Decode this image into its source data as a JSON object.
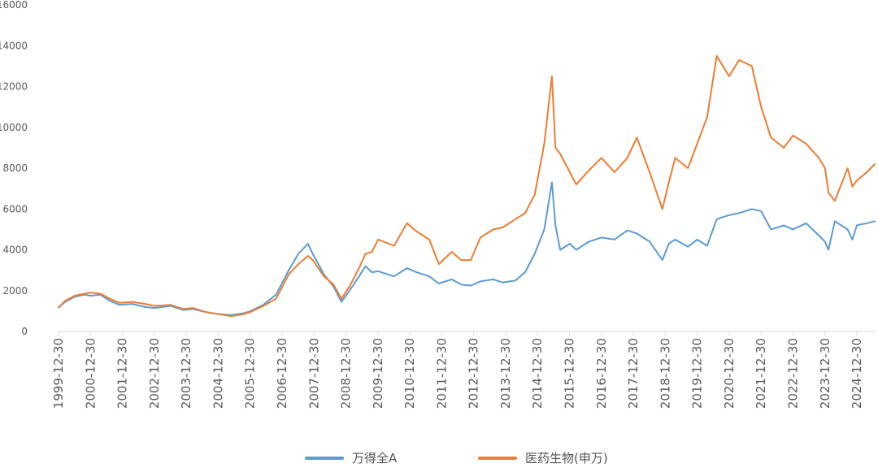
{
  "chart_data": {
    "type": "line",
    "title": "",
    "xlabel": "",
    "ylabel": "",
    "ylim": [
      0,
      16000
    ],
    "yticks": [
      "0",
      "2000",
      "4000",
      "6000",
      "8000",
      "10000",
      "12000",
      "14000",
      "16000"
    ],
    "xticks": [
      "1999-12-30",
      "2000-12-30",
      "2001-12-30",
      "2002-12-30",
      "2003-12-30",
      "2004-12-30",
      "2005-12-30",
      "2006-12-30",
      "2007-12-30",
      "2008-12-30",
      "2009-12-30",
      "2010-12-30",
      "2011-12-30",
      "2012-12-30",
      "2013-12-30",
      "2014-12-30",
      "2015-12-30",
      "2016-12-30",
      "2017-12-30",
      "2018-12-30",
      "2019-12-30",
      "2020-12-30",
      "2021-12-30",
      "2022-12-30",
      "2023-12-30",
      "2024-12-30"
    ],
    "grid": false,
    "legend_position": "bottom",
    "series": [
      {
        "name": "万得全A",
        "color": "#5B9BD5",
        "x": [
          1999.99,
          2000.2,
          2000.5,
          2000.8,
          2001.0,
          2001.3,
          2001.6,
          2001.9,
          2002.3,
          2002.7,
          2003.0,
          2003.5,
          2003.9,
          2004.2,
          2004.6,
          2005.0,
          2005.4,
          2005.8,
          2006.0,
          2006.4,
          2006.8,
          2007.0,
          2007.2,
          2007.5,
          2007.8,
          2007.95,
          2008.3,
          2008.6,
          2008.85,
          2009.1,
          2009.4,
          2009.6,
          2009.8,
          2010.0,
          2010.5,
          2010.9,
          2011.2,
          2011.6,
          2011.9,
          2012.3,
          2012.6,
          2012.9,
          2013.2,
          2013.6,
          2013.9,
          2014.3,
          2014.6,
          2014.9,
          2015.2,
          2015.44,
          2015.55,
          2015.7,
          2016.0,
          2016.2,
          2016.6,
          2016.99,
          2017.4,
          2017.8,
          2018.1,
          2018.5,
          2018.9,
          2019.1,
          2019.3,
          2019.7,
          2019.99,
          2020.3,
          2020.6,
          2020.99,
          2021.3,
          2021.7,
          2021.99,
          2022.3,
          2022.7,
          2022.99,
          2023.4,
          2023.8,
          2023.99,
          2024.1,
          2024.3,
          2024.7,
          2024.85,
          2024.99,
          2025.3,
          2025.55
        ],
        "values": [
          1180,
          1450,
          1700,
          1800,
          1750,
          1800,
          1500,
          1300,
          1350,
          1200,
          1150,
          1250,
          1050,
          1100,
          950,
          850,
          800,
          900,
          1000,
          1300,
          1800,
          2400,
          3000,
          3800,
          4300,
          3800,
          2800,
          2200,
          1450,
          2000,
          2700,
          3200,
          2900,
          2950,
          2700,
          3100,
          2900,
          2700,
          2350,
          2550,
          2300,
          2250,
          2450,
          2550,
          2400,
          2500,
          2900,
          3800,
          5000,
          7300,
          5200,
          4000,
          4300,
          4000,
          4400,
          4600,
          4500,
          4950,
          4800,
          4400,
          3500,
          4300,
          4500,
          4150,
          4500,
          4200,
          5500,
          5700,
          5800,
          6000,
          5900,
          5000,
          5200,
          5000,
          5300,
          4700,
          4400,
          4000,
          5400,
          5000,
          4500,
          5200,
          5300,
          5400
        ]
      },
      {
        "name": "医药生物(申万)",
        "color": "#ED7D31",
        "x": [
          1999.99,
          2000.2,
          2000.5,
          2000.8,
          2001.0,
          2001.3,
          2001.6,
          2001.9,
          2002.3,
          2002.7,
          2003.0,
          2003.5,
          2003.9,
          2004.2,
          2004.6,
          2005.0,
          2005.4,
          2005.8,
          2006.0,
          2006.4,
          2006.8,
          2007.0,
          2007.2,
          2007.5,
          2007.8,
          2007.95,
          2008.3,
          2008.6,
          2008.85,
          2009.1,
          2009.4,
          2009.6,
          2009.8,
          2010.0,
          2010.5,
          2010.9,
          2011.2,
          2011.6,
          2011.9,
          2012.3,
          2012.6,
          2012.9,
          2013.2,
          2013.6,
          2013.9,
          2014.3,
          2014.6,
          2014.9,
          2015.2,
          2015.44,
          2015.55,
          2015.7,
          2016.0,
          2016.2,
          2016.6,
          2016.99,
          2017.4,
          2017.8,
          2018.1,
          2018.5,
          2018.9,
          2019.1,
          2019.3,
          2019.7,
          2019.99,
          2020.3,
          2020.6,
          2020.99,
          2021.3,
          2021.7,
          2021.99,
          2022.3,
          2022.7,
          2022.99,
          2023.4,
          2023.8,
          2023.99,
          2024.1,
          2024.3,
          2024.7,
          2024.85,
          2024.99,
          2025.3,
          2025.55
        ],
        "values": [
          1180,
          1500,
          1750,
          1850,
          1900,
          1850,
          1600,
          1400,
          1450,
          1350,
          1250,
          1300,
          1100,
          1150,
          950,
          850,
          750,
          850,
          950,
          1250,
          1600,
          2200,
          2800,
          3300,
          3700,
          3500,
          2700,
          2300,
          1600,
          2200,
          3100,
          3800,
          3900,
          4500,
          4200,
          5300,
          4900,
          4500,
          3300,
          3900,
          3500,
          3500,
          4600,
          5000,
          5100,
          5500,
          5800,
          6700,
          9200,
          12500,
          9000,
          8700,
          7800,
          7200,
          7900,
          8500,
          7800,
          8500,
          9500,
          7800,
          6000,
          7300,
          8500,
          8000,
          9200,
          10500,
          13500,
          12500,
          13300,
          13000,
          11000,
          9500,
          9000,
          9600,
          9200,
          8500,
          8000,
          6800,
          6400,
          8000,
          7100,
          7400,
          7800,
          8200
        ]
      }
    ]
  }
}
